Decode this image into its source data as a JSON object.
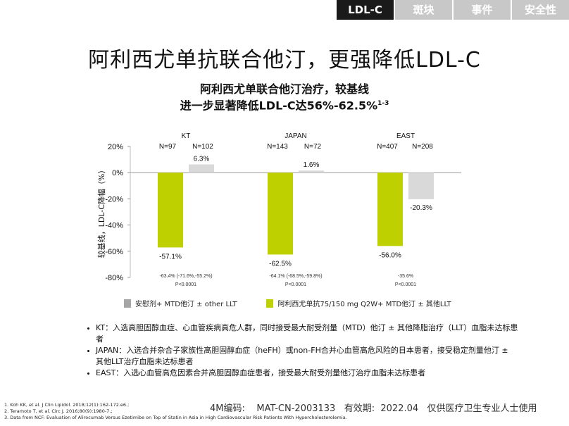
{
  "tabs": [
    {
      "label": "LDL-C",
      "active": true
    },
    {
      "label": "斑块",
      "active": false
    },
    {
      "label": "事件",
      "active": false
    },
    {
      "label": "安全性",
      "active": false
    }
  ],
  "main_title": "阿利西尤单抗联合他汀，更强降低LDL-C",
  "subtitle": {
    "line1": "阿利西尤单联合他汀治疗，较基线",
    "line2": "进一步显著降低LDL-C达56%-62.5%",
    "line2_sup": "1-3"
  },
  "colors": {
    "placebo": "#d9d9d9",
    "alirocumab": "#bfd000",
    "tab_active_bg": "#1a1a1a",
    "tab_inactive_bg": "#c8c8c8"
  },
  "chart_data": {
    "type": "bar",
    "ylabel": "较基线，LDL-C降幅（%）",
    "ylim": [
      -80,
      20
    ],
    "yticks": [
      "20%",
      "0%",
      "-20%",
      "-40%",
      "-60%",
      "-80%"
    ],
    "ytick_values": [
      20,
      0,
      -20,
      -40,
      -60,
      -80
    ],
    "grid": false,
    "categories": [
      "KT",
      "JAPAN",
      "EAST"
    ],
    "group_n": [
      [
        "N=97",
        "N=102"
      ],
      [
        "N=143",
        "N=72"
      ],
      [
        "N=407",
        "N=208"
      ]
    ],
    "series": [
      {
        "name": "阿利西尤单抗75/150 mg Q2W+ MTD他汀 ± 其他LLT",
        "color": "#bfd000",
        "values": [
          -57.1,
          -62.5,
          -56.0
        ],
        "labels": [
          "-57.1%",
          "-62.5%",
          "-56.0%"
        ]
      },
      {
        "name": "安慰剂+ MTD他汀 ± other LLT",
        "color": "#d9d9d9",
        "values": [
          6.3,
          1.6,
          -20.3
        ],
        "labels": [
          "6.3%",
          "1.6%",
          "-20.3%"
        ]
      }
    ],
    "differences": [
      {
        "ci": "-63.4% (-71.6%,-55.2%)",
        "p": "P<0.0001"
      },
      {
        "ci": "-64.1% (-68.5%,-59.8%)",
        "p": "P<0.0001"
      },
      {
        "ci": "-35.6%",
        "p": "P<0.0001"
      }
    ]
  },
  "legend": [
    {
      "label": "安慰剂+ MTD他汀 ± other LLT",
      "color": "#a6a6a6"
    },
    {
      "label": "阿利西尤单抗75/150 mg Q2W+ MTD他汀 ± 其他LLT",
      "color": "#bfd000"
    }
  ],
  "notes": [
    "KT：入选高胆固醇血症、心血管疾病高危人群，同时接受最大耐受剂量（MTD）他汀 ± 其他降脂治疗（LLT）血脂未达标患者",
    "JAPAN：入选合并杂合子家族性高胆固醇血症（heFH）或non-FH合并心血管高危风险的日本患者，接受稳定剂量他汀 ± 其他LLT治疗血脂未达标患者",
    "EAST：入选心血管高危因素合并高胆固醇血症患者，接受最大耐受剂量他汀治疗血脂未达标患者"
  ],
  "references": [
    "1. Koh KK, et al. J Clin Lipidol. 2018;12(1):162-172.e6.;",
    "2. Teramoto T, et al. Circ J. 2016;80(9):1980-7.;",
    "3. Data from NCF: Evaluation of Alirocumab Versus Ezetimibe on Top of Statin in Asia in High Cardiovascular Risk Patients With Hypercholesterolemia."
  ],
  "footer": "4M编码:    MAT-CN-2003133   有效期:  2022.04   仅供医疗卫生专业人士使用"
}
